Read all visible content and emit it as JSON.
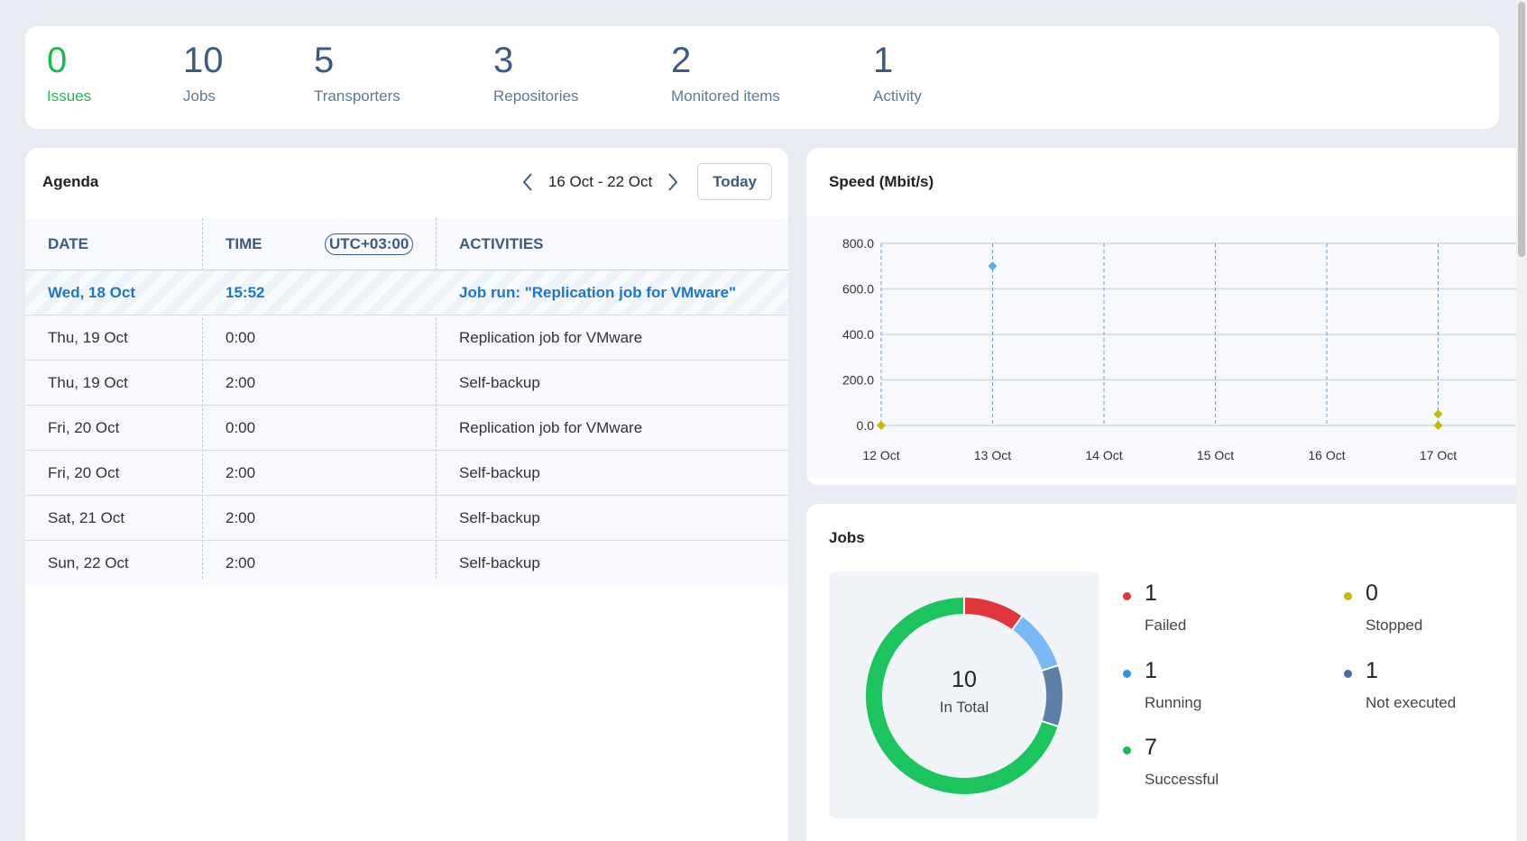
{
  "summary": [
    {
      "value": "0",
      "label": "Issues"
    },
    {
      "value": "10",
      "label": "Jobs"
    },
    {
      "value": "5",
      "label": "Transporters"
    },
    {
      "value": "3",
      "label": "Repositories"
    },
    {
      "value": "2",
      "label": "Monitored items"
    },
    {
      "value": "1",
      "label": "Activity"
    }
  ],
  "agenda": {
    "title": "Agenda",
    "range": "16 Oct - 22 Oct",
    "today": "Today",
    "headers": {
      "date": "DATE",
      "time": "TIME",
      "tz": "UTC+03:00",
      "activities": "ACTIVITIES"
    },
    "rows": [
      {
        "date": "Wed, 18 Oct",
        "time": "15:52",
        "activity": "Job run: \"Replication job for VMware\""
      },
      {
        "date": "Thu, 19 Oct",
        "time": "0:00",
        "activity": "Replication job for VMware"
      },
      {
        "date": "Thu, 19 Oct",
        "time": "2:00",
        "activity": "Self-backup"
      },
      {
        "date": "Fri, 20 Oct",
        "time": "0:00",
        "activity": "Replication job for VMware"
      },
      {
        "date": "Fri, 20 Oct",
        "time": "2:00",
        "activity": "Self-backup"
      },
      {
        "date": "Sat, 21 Oct",
        "time": "2:00",
        "activity": "Self-backup"
      },
      {
        "date": "Sun, 22 Oct",
        "time": "2:00",
        "activity": "Self-backup"
      }
    ]
  },
  "speed": {
    "title": "Speed (Mbit/s)"
  },
  "jobs": {
    "title": "Jobs",
    "total": "10",
    "total_label": "In Total",
    "legend": [
      {
        "value": "1",
        "label": "Failed",
        "color": "#e0353b"
      },
      {
        "value": "0",
        "label": "Stopped",
        "color": "#c9b800"
      },
      {
        "value": "1",
        "label": "Running",
        "color": "#2f8ff0"
      },
      {
        "value": "1",
        "label": "Not executed",
        "color": "#4a6d9c"
      },
      {
        "value": "7",
        "label": "Successful",
        "color": "#1bb954"
      }
    ]
  },
  "chart_data": [
    {
      "type": "scatter",
      "title": "Speed (Mbit/s)",
      "categories": [
        "12 Oct",
        "13 Oct",
        "14 Oct",
        "15 Oct",
        "16 Oct",
        "17 Oct"
      ],
      "y_ticks": [
        "0.0",
        "200.0",
        "400.0",
        "600.0",
        "800.0"
      ],
      "ylim": [
        0,
        800
      ],
      "grid": true,
      "series": [
        {
          "color": "#5aa9f0",
          "points": [
            {
              "x": "13 Oct",
              "y": 700
            }
          ]
        },
        {
          "color": "#c9b800",
          "points": [
            {
              "x": "12 Oct",
              "y": 0
            },
            {
              "x": "17 Oct",
              "y": 50
            },
            {
              "x": "17 Oct",
              "y": 0
            }
          ]
        }
      ]
    },
    {
      "type": "pie",
      "title": "Jobs",
      "categories": [
        "Failed",
        "Running",
        "Not executed",
        "Successful",
        "Stopped"
      ],
      "values": [
        1,
        1,
        1,
        7,
        0
      ],
      "colors": [
        "#e0353b",
        "#7ab8f5",
        "#5f7fa8",
        "#1bc45c",
        "#c9b800"
      ]
    }
  ]
}
